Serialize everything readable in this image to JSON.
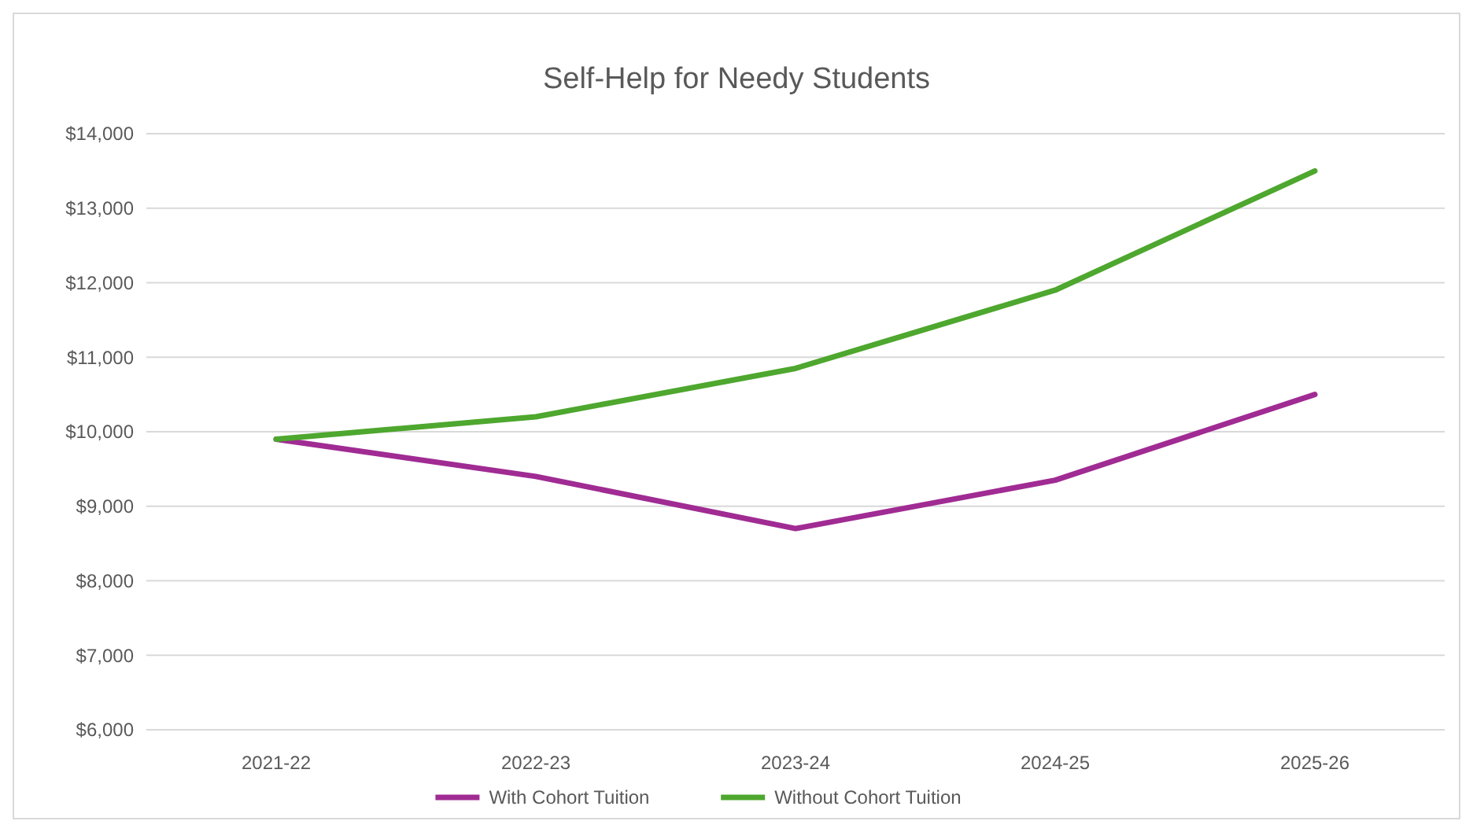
{
  "chart_data": {
    "type": "line",
    "title": "Self-Help for Needy Students",
    "categories": [
      "2021-22",
      "2022-23",
      "2023-24",
      "2024-25",
      "2025-26"
    ],
    "series": [
      {
        "name": "With Cohort Tuition",
        "color": "#a02b93",
        "values": [
          9900,
          9400,
          8700,
          9350,
          10500
        ]
      },
      {
        "name": "Without Cohort Tuition",
        "color": "#4ea72e",
        "values": [
          9900,
          10200,
          10850,
          11900,
          13500
        ]
      }
    ],
    "ylim": [
      6000,
      14000
    ],
    "yticks": [
      {
        "value": 6000,
        "label": "$6,000"
      },
      {
        "value": 7000,
        "label": "$7,000"
      },
      {
        "value": 8000,
        "label": "$8,000"
      },
      {
        "value": 9000,
        "label": "$9,000"
      },
      {
        "value": 10000,
        "label": "$10,000"
      },
      {
        "value": 11000,
        "label": "$11,000"
      },
      {
        "value": 12000,
        "label": "$12,000"
      },
      {
        "value": 13000,
        "label": "$13,000"
      },
      {
        "value": 14000,
        "label": "$14,000"
      }
    ],
    "grid": "y",
    "legend": "bottom",
    "marker": "none",
    "line_style": "solid"
  }
}
